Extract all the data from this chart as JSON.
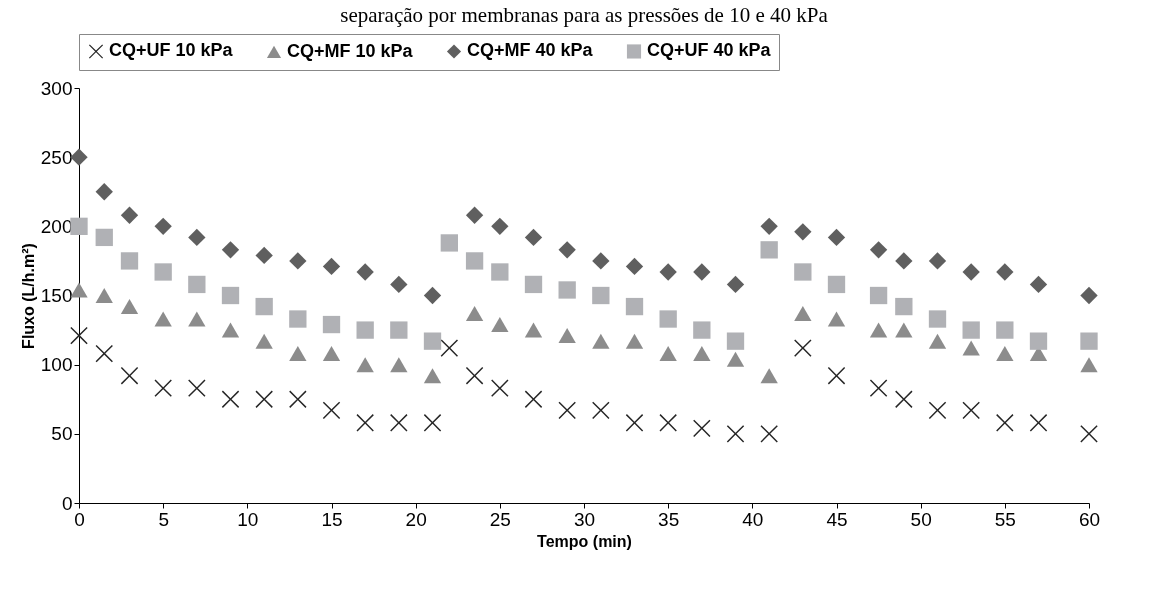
{
  "chart_data": {
    "type": "scatter",
    "title": "separação por membranas para as pressões de 10 e 40 kPa",
    "xlabel": "Tempo (min)",
    "ylabel": "Fluxo (L/h.m²)",
    "xlim": [
      0,
      60
    ],
    "xticks": [
      0,
      5,
      10,
      15,
      20,
      25,
      30,
      35,
      40,
      45,
      50,
      55,
      60
    ],
    "ylim": [
      0,
      300
    ],
    "yticks": [
      0,
      50,
      100,
      150,
      200,
      250,
      300
    ],
    "grid": false,
    "legend": "top",
    "series": [
      {
        "name": "CQ+UF 10 kPa",
        "color": "#262626",
        "marker": "cross",
        "x": [
          0,
          1.5,
          3,
          5,
          7,
          9,
          11,
          13,
          15,
          17,
          19,
          21,
          22,
          23.5,
          25,
          27,
          29,
          31,
          33,
          35,
          37,
          39,
          41,
          43,
          45,
          47.5,
          49,
          51,
          53,
          55,
          57,
          60
        ],
        "values": [
          121,
          108,
          92,
          83,
          83,
          75,
          75,
          75,
          67,
          58,
          58,
          58,
          112,
          92,
          83,
          75,
          67,
          67,
          58,
          58,
          54,
          50,
          50,
          112,
          92,
          83,
          75,
          67,
          67,
          58,
          58,
          50
        ]
      },
      {
        "name": "CQ+MF 10 kPa",
        "color": "#8c8c8c",
        "marker": "triangle",
        "x": [
          0,
          1.5,
          3,
          5,
          7,
          9,
          11,
          13,
          15,
          17,
          19,
          21,
          23.5,
          25,
          27,
          29,
          31,
          33,
          35,
          37,
          39,
          41,
          43,
          45,
          47.5,
          49,
          51,
          53,
          55,
          57,
          60
        ],
        "values": [
          154,
          150,
          142,
          133,
          133,
          125,
          117,
          108,
          108,
          100,
          100,
          92,
          137,
          129,
          125,
          121,
          117,
          117,
          108,
          108,
          104,
          92,
          137,
          133,
          125,
          125,
          117,
          112,
          108,
          108,
          100
        ]
      },
      {
        "name": "CQ+MF 40 kPa",
        "color": "#5f5f5f",
        "marker": "diamond",
        "x": [
          0,
          1.5,
          3,
          5,
          7,
          9,
          11,
          13,
          15,
          17,
          19,
          21,
          23.5,
          25,
          27,
          29,
          31,
          33,
          35,
          37,
          39,
          41,
          43,
          45,
          47.5,
          49,
          51,
          53,
          55,
          57,
          60
        ],
        "values": [
          250,
          225,
          208,
          200,
          192,
          183,
          179,
          175,
          171,
          167,
          158,
          150,
          208,
          200,
          192,
          183,
          175,
          171,
          167,
          167,
          158,
          200,
          196,
          192,
          183,
          175,
          175,
          167,
          167,
          158,
          150
        ]
      },
      {
        "name": "CQ+UF 40 kPa",
        "color": "#b0b1b5",
        "marker": "square",
        "x": [
          0,
          1.5,
          3,
          5,
          7,
          9,
          11,
          13,
          15,
          17,
          19,
          21,
          22,
          23.5,
          25,
          27,
          29,
          31,
          33,
          35,
          37,
          39,
          41,
          43,
          45,
          47.5,
          49,
          51,
          53,
          55,
          57,
          60
        ],
        "values": [
          200,
          192,
          175,
          167,
          158,
          150,
          142,
          133,
          129,
          125,
          125,
          117,
          188,
          175,
          167,
          158,
          154,
          150,
          142,
          133,
          125,
          117,
          183,
          167,
          158,
          150,
          142,
          133,
          125,
          125,
          117,
          117
        ]
      }
    ]
  }
}
